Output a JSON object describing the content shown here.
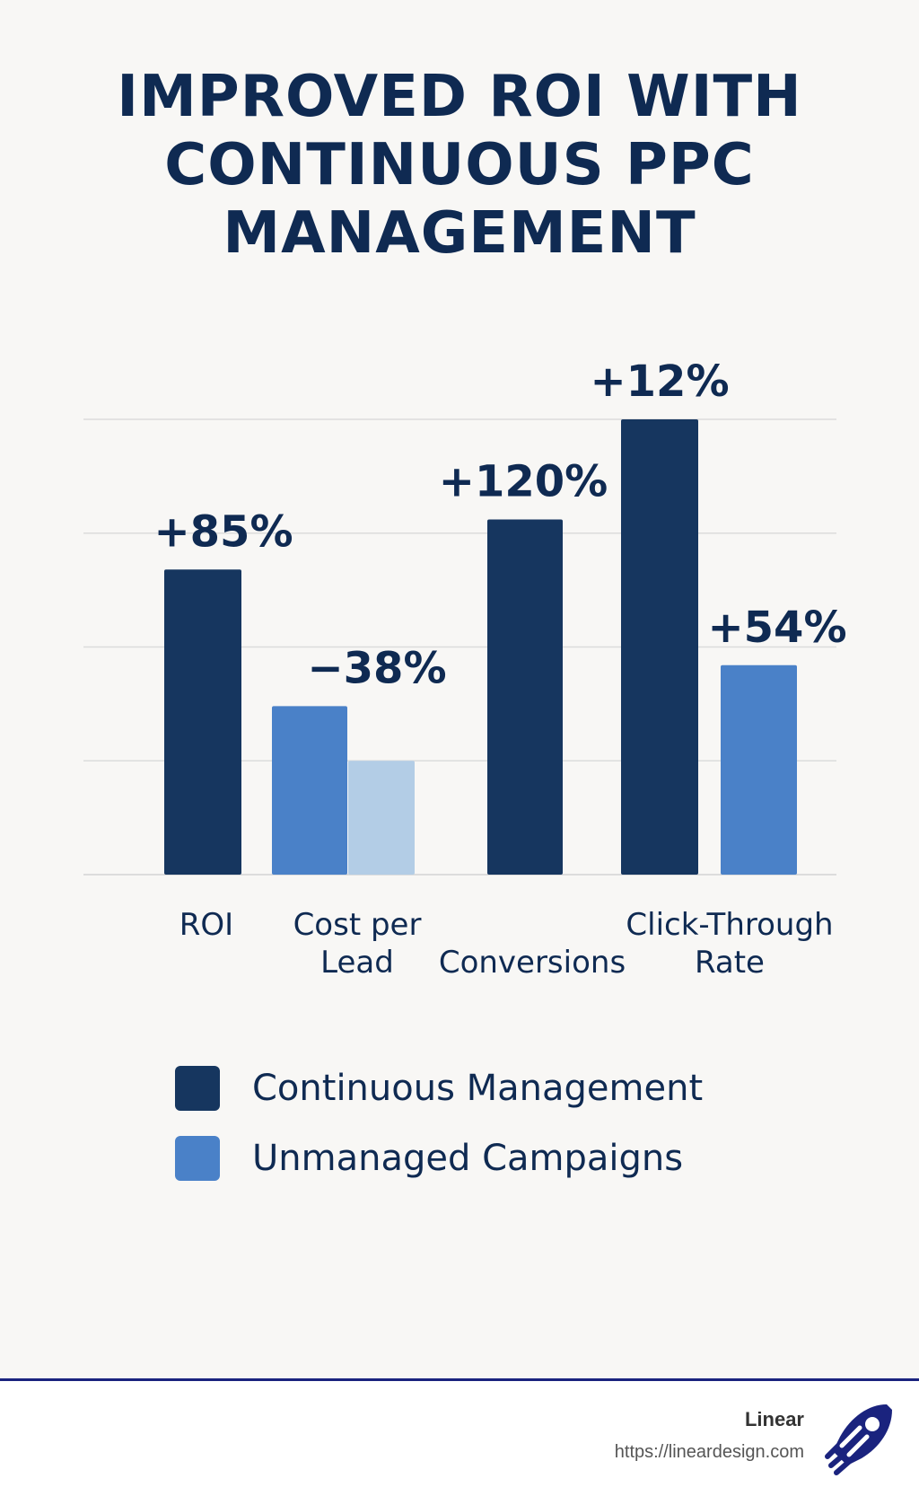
{
  "title_lines": [
    "IMPROVED ROI WITH",
    "CONTINUOUS PPC",
    "MANAGEMENT"
  ],
  "colors": {
    "continuous": "#16365f",
    "unmanaged": "#4a81c8",
    "unmanaged_light": "#b3cde6",
    "text": "#0f2a52",
    "grid": "#dcdcdc"
  },
  "chart_data": {
    "type": "bar",
    "title": "IMPROVED ROI WITH CONTINUOUS PPC MANAGEMENT",
    "xlabel": "",
    "ylabel": "",
    "grid": true,
    "legend_position": "bottom",
    "ylim": [
      0,
      100
    ],
    "categories": [
      {
        "lines": [
          "ROI"
        ]
      },
      {
        "lines": [
          "Cost per",
          "Lead"
        ]
      },
      {
        "lines": [
          "Conversions"
        ]
      },
      {
        "lines": [
          "Click-Through",
          "Rate"
        ]
      }
    ],
    "bars": [
      {
        "series": "continuous",
        "value": 67,
        "label": "+85%"
      },
      {
        "series": "unmanaged",
        "value": 37,
        "label": "−38%"
      },
      {
        "series": "unmanaged_light",
        "value": 25,
        "label": ""
      },
      {
        "series": "continuous",
        "value": 78,
        "label": "+120%"
      },
      {
        "series": "continuous",
        "value": 100,
        "label": "+12%"
      },
      {
        "series": "unmanaged",
        "value": 46,
        "label": "+54%"
      }
    ],
    "series": [
      {
        "key": "continuous",
        "name": "Continuous Management"
      },
      {
        "key": "unmanaged",
        "name": "Unmanaged Campaigns"
      }
    ]
  },
  "footer": {
    "brand": "Linear",
    "url": "https://lineardesign.com",
    "logo_icon": "rocket-logo-icon"
  }
}
